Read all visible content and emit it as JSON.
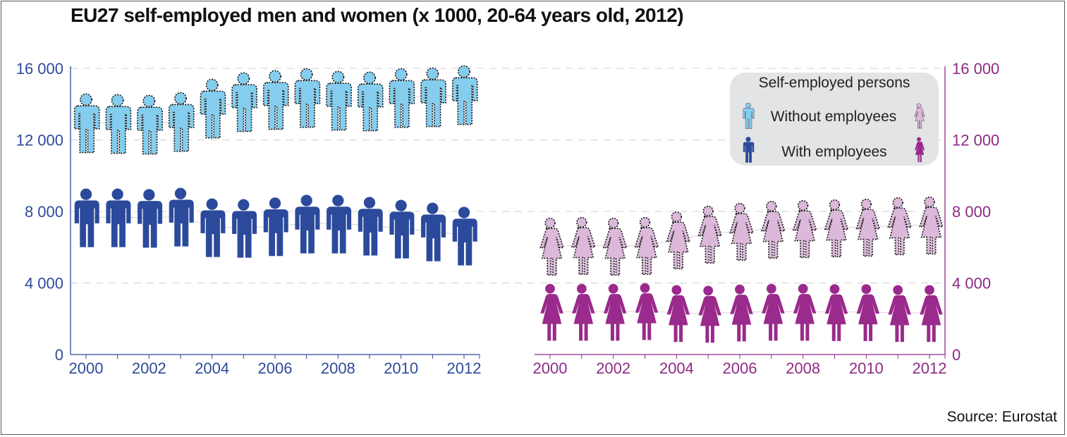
{
  "chart_data": {
    "type": "scatter",
    "title": "EU27 self-employed men and women (x 1000, 20-64 years old, 2012)",
    "source": "Source: Eurostat",
    "x": [
      2000,
      2001,
      2002,
      2003,
      2004,
      2005,
      2006,
      2007,
      2008,
      2009,
      2010,
      2011,
      2012
    ],
    "xtick_labels": [
      "2000",
      "2002",
      "2004",
      "2006",
      "2008",
      "2010",
      "2012"
    ],
    "ylim": [
      0,
      16000
    ],
    "ytick_labels": [
      "0",
      "4 000",
      "8 000",
      "12 000",
      "16 000"
    ],
    "yticks": [
      0,
      4000,
      8000,
      12000,
      16000
    ],
    "grid": "horizontal dashed",
    "legend": {
      "title": "Self-employed persons",
      "entries": [
        "Without employees",
        "With employees"
      ],
      "placement": "top-right"
    },
    "panels": [
      {
        "group": "men",
        "axis_color": "#2e4a9a",
        "series": [
          {
            "name": "Without employees",
            "icon": "man-outline-icon",
            "color": "#85cdee",
            "values": [
              12970,
              12930,
              12890,
              13040,
              13790,
              14150,
              14270,
              14380,
              14230,
              14190,
              14380,
              14420,
              14540
            ]
          },
          {
            "name": "With employees",
            "icon": "man-filled-icon",
            "color": "#2b4a9c",
            "values": [
              7680,
              7680,
              7650,
              7720,
              7130,
              7090,
              7180,
              7330,
              7330,
              7210,
              7050,
              6890,
              6660
            ]
          }
        ]
      },
      {
        "group": "women",
        "axis_color": "#8e2a85",
        "series": [
          {
            "name": "Without employees",
            "icon": "woman-outline-icon",
            "color": "#dcb8da",
            "values": [
              6070,
              6110,
              6070,
              6110,
              6420,
              6740,
              6900,
              7010,
              7050,
              7090,
              7130,
              7210,
              7250
            ]
          },
          {
            "name": "With employees",
            "icon": "woman-filled-icon",
            "color": "#9a2a8b",
            "values": [
              2400,
              2400,
              2400,
              2440,
              2330,
              2290,
              2360,
              2400,
              2400,
              2380,
              2380,
              2330,
              2330
            ]
          }
        ]
      }
    ]
  }
}
